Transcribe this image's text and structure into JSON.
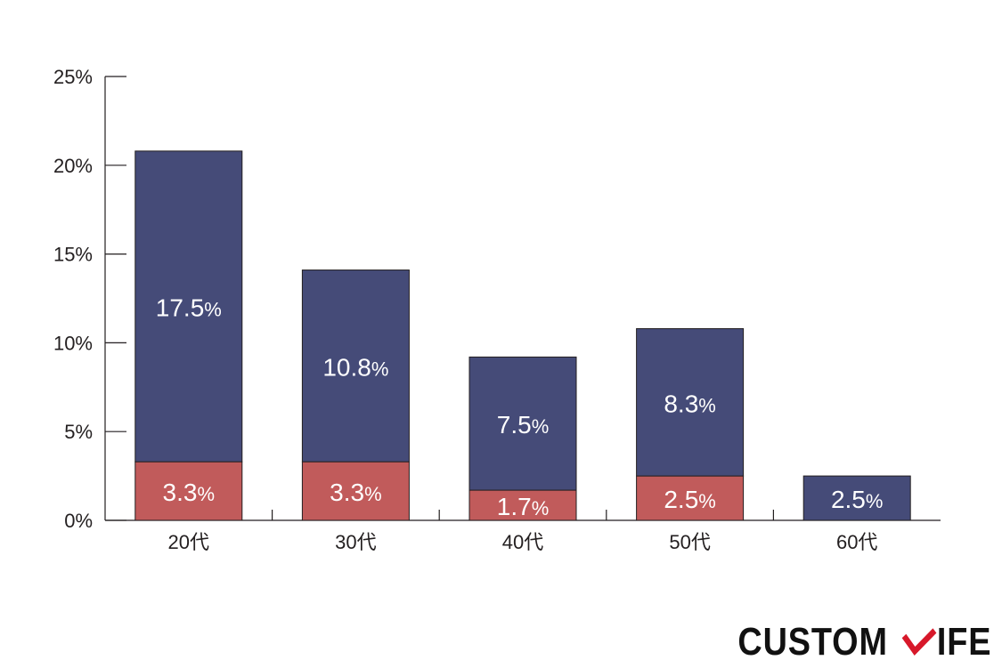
{
  "chart_data": {
    "type": "bar",
    "stacked": true,
    "categories": [
      "20代",
      "30代",
      "40代",
      "50代",
      "60代"
    ],
    "series": [
      {
        "color": "#c15b5b",
        "values": [
          3.3,
          3.3,
          1.7,
          2.5,
          0
        ],
        "labels": [
          "3.3%",
          "3.3%",
          "1.7%",
          "2.5%",
          ""
        ]
      },
      {
        "color": "#454b78",
        "values": [
          17.5,
          10.8,
          7.5,
          8.3,
          2.5
        ],
        "labels": [
          "17.5%",
          "10.8%",
          "7.5%",
          "8.3%",
          "2.5%"
        ]
      }
    ],
    "ylim": [
      0,
      25
    ],
    "yticks": [
      0,
      5,
      10,
      15,
      20,
      25
    ],
    "ytick_labels": [
      "0%",
      "5%",
      "10%",
      "15%",
      "20%",
      "25%"
    ],
    "title": "",
    "xlabel": "",
    "ylabel": "",
    "grid": false,
    "legend": "none"
  },
  "logo": {
    "text_left": "CUSTOM",
    "text_right": "IFE",
    "mark_icon": "red-check-mark-icon",
    "mark_color": "#d7182a"
  }
}
